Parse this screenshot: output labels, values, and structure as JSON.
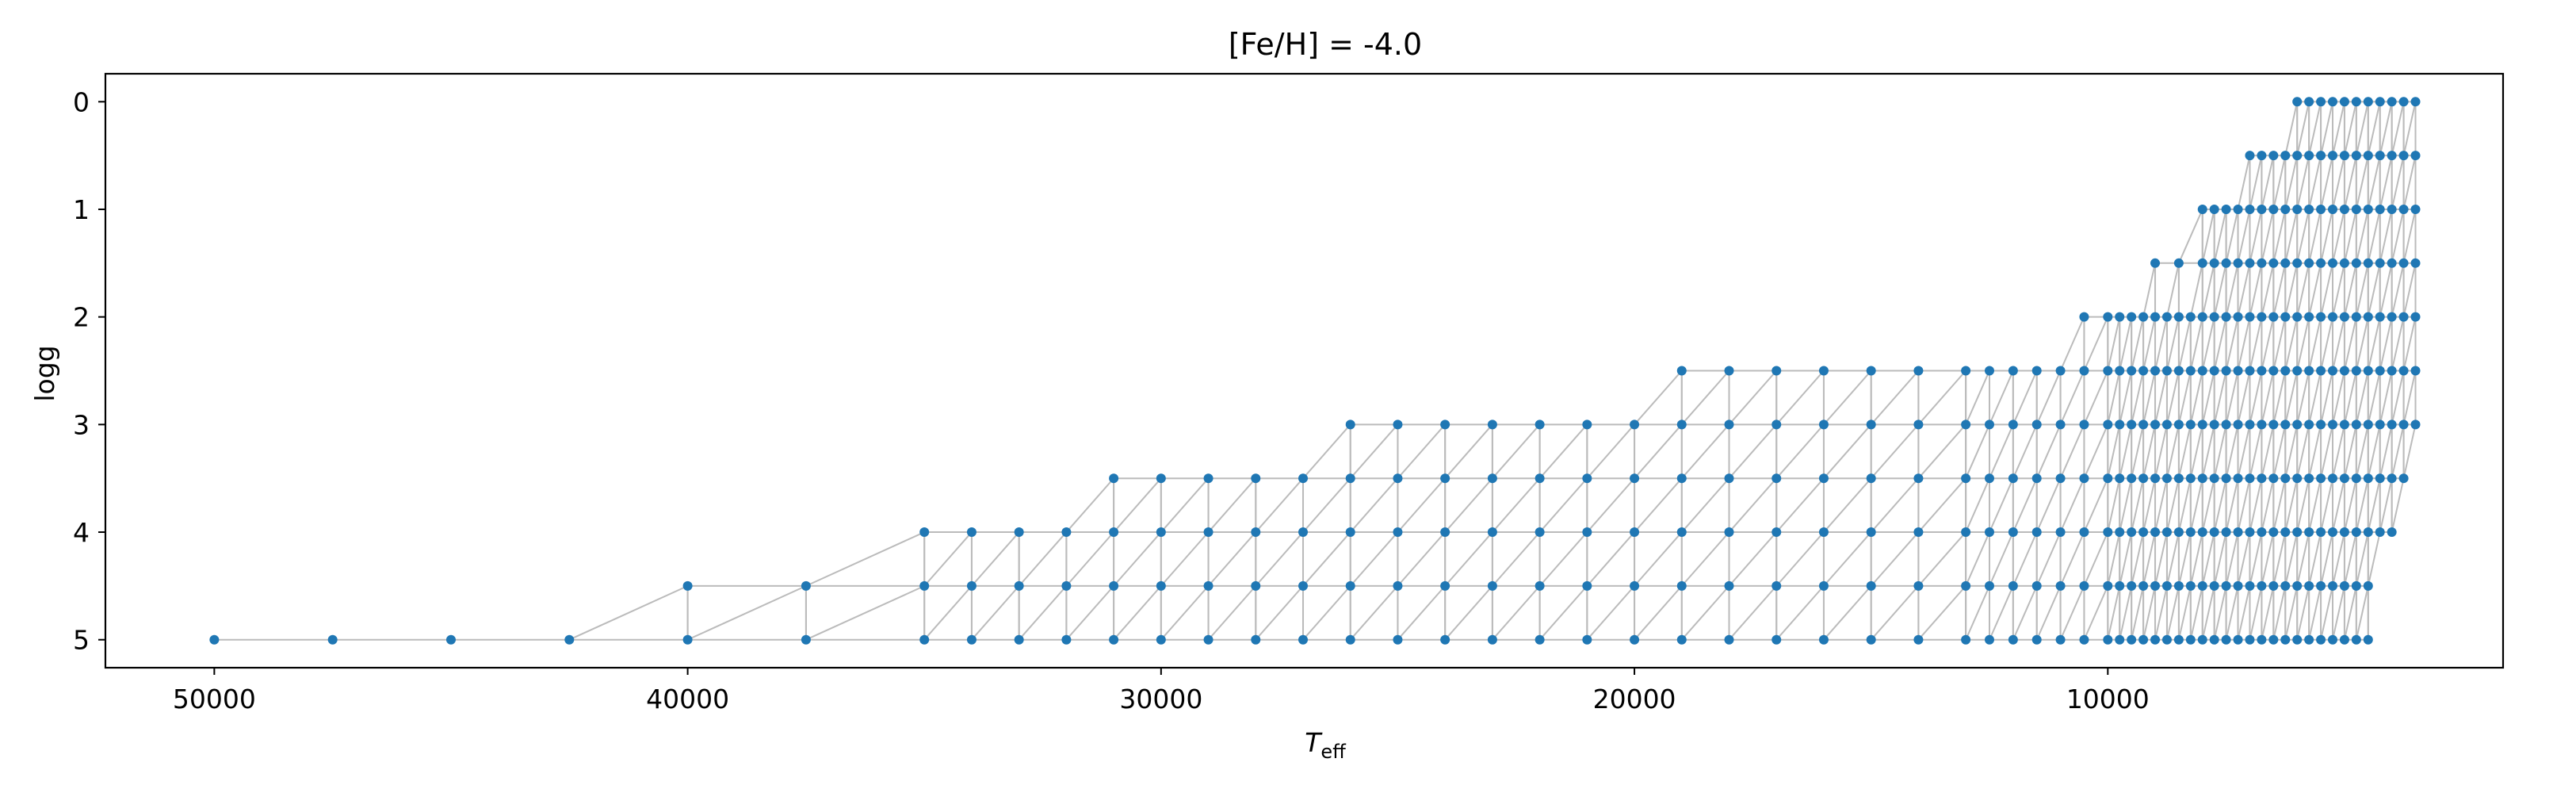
{
  "chart_data": {
    "type": "scatter",
    "title": "[Fe/H] = -4.0",
    "xlabel_main": "T",
    "xlabel_sub": "eff",
    "ylabel": "logg",
    "x_inverted": true,
    "y_inverted": true,
    "xlim": [
      52300,
      1650
    ],
    "ylim": [
      5.26,
      -0.26
    ],
    "xticks": [
      50000,
      40000,
      30000,
      20000,
      10000
    ],
    "xtick_labels": [
      "50000",
      "40000",
      "30000",
      "20000",
      "10000"
    ],
    "yticks": [
      0,
      1,
      2,
      3,
      4,
      5
    ],
    "ytick_labels": [
      "0",
      "1",
      "2",
      "3",
      "4",
      "5"
    ],
    "grid": false,
    "point_color": "#1f77b4",
    "edge_color": "#bbbbbb",
    "rows": [
      {
        "logg": 0.0,
        "teff": [
          6000,
          5750,
          5500,
          5250,
          5000,
          4750,
          4500,
          4250,
          4000,
          3750,
          3500
        ]
      },
      {
        "logg": 0.5,
        "teff": [
          7000,
          6750,
          6500,
          6250,
          6000,
          5750,
          5500,
          5250,
          5000,
          4750,
          4500,
          4250,
          4000,
          3750,
          3500
        ]
      },
      {
        "logg": 1.0,
        "teff": [
          8000,
          7750,
          7500,
          7250,
          7000,
          6750,
          6500,
          6250,
          6000,
          5750,
          5500,
          5250,
          5000,
          4750,
          4500,
          4250,
          4000,
          3750,
          3500
        ]
      },
      {
        "logg": 1.5,
        "teff": [
          9000,
          8500,
          8000,
          7750,
          7500,
          7250,
          7000,
          6750,
          6500,
          6250,
          6000,
          5750,
          5500,
          5250,
          5000,
          4750,
          4500,
          4250,
          4000,
          3750,
          3500
        ]
      },
      {
        "logg": 2.0,
        "teff": [
          10500,
          10000,
          9750,
          9500,
          9250,
          9000,
          8750,
          8500,
          8250,
          8000,
          7750,
          7500,
          7250,
          7000,
          6750,
          6500,
          6250,
          6000,
          5750,
          5500,
          5250,
          5000,
          4750,
          4500,
          4250,
          4000,
          3750,
          3500
        ]
      },
      {
        "logg": 2.5,
        "teff": [
          19000,
          18000,
          17000,
          16000,
          15000,
          14000,
          13000,
          12500,
          12000,
          11500,
          11000,
          10500,
          10000,
          9750,
          9500,
          9250,
          9000,
          8750,
          8500,
          8250,
          8000,
          7750,
          7500,
          7250,
          7000,
          6750,
          6500,
          6250,
          6000,
          5750,
          5500,
          5250,
          5000,
          4750,
          4500,
          4250,
          4000,
          3750,
          3500
        ]
      },
      {
        "logg": 3.0,
        "teff": [
          26000,
          25000,
          24000,
          23000,
          22000,
          21000,
          20000,
          19000,
          18000,
          17000,
          16000,
          15000,
          14000,
          13000,
          12500,
          12000,
          11500,
          11000,
          10500,
          10000,
          9750,
          9500,
          9250,
          9000,
          8750,
          8500,
          8250,
          8000,
          7750,
          7500,
          7250,
          7000,
          6750,
          6500,
          6250,
          6000,
          5750,
          5500,
          5250,
          5000,
          4750,
          4500,
          4250,
          4000,
          3750,
          3500
        ]
      },
      {
        "logg": 3.5,
        "teff": [
          31000,
          30000,
          29000,
          28000,
          27000,
          26000,
          25000,
          24000,
          23000,
          22000,
          21000,
          20000,
          19000,
          18000,
          17000,
          16000,
          15000,
          14000,
          13000,
          12500,
          12000,
          11500,
          11000,
          10500,
          10000,
          9750,
          9500,
          9250,
          9000,
          8750,
          8500,
          8250,
          8000,
          7750,
          7500,
          7250,
          7000,
          6750,
          6500,
          6250,
          6000,
          5750,
          5500,
          5250,
          5000,
          4750,
          4500,
          4250,
          4000,
          3750
        ]
      },
      {
        "logg": 4.0,
        "teff": [
          35000,
          34000,
          33000,
          32000,
          31000,
          30000,
          29000,
          28000,
          27000,
          26000,
          25000,
          24000,
          23000,
          22000,
          21000,
          20000,
          19000,
          18000,
          17000,
          16000,
          15000,
          14000,
          13000,
          12500,
          12000,
          11500,
          11000,
          10500,
          10000,
          9750,
          9500,
          9250,
          9000,
          8750,
          8500,
          8250,
          8000,
          7750,
          7500,
          7250,
          7000,
          6750,
          6500,
          6250,
          6000,
          5750,
          5500,
          5250,
          5000,
          4750,
          4500,
          4250,
          4000
        ]
      },
      {
        "logg": 4.5,
        "teff": [
          40000,
          37500,
          35000,
          34000,
          33000,
          32000,
          31000,
          30000,
          29000,
          28000,
          27000,
          26000,
          25000,
          24000,
          23000,
          22000,
          21000,
          20000,
          19000,
          18000,
          17000,
          16000,
          15000,
          14000,
          13000,
          12500,
          12000,
          11500,
          11000,
          10500,
          10000,
          9750,
          9500,
          9250,
          9000,
          8750,
          8500,
          8250,
          8000,
          7750,
          7500,
          7250,
          7000,
          6750,
          6500,
          6250,
          6000,
          5750,
          5500,
          5250,
          5000,
          4750,
          4500
        ]
      },
      {
        "logg": 5.0,
        "teff": [
          50000,
          47500,
          45000,
          42500,
          40000,
          37500,
          35000,
          34000,
          33000,
          32000,
          31000,
          30000,
          29000,
          28000,
          27000,
          26000,
          25000,
          24000,
          23000,
          22000,
          21000,
          20000,
          19000,
          18000,
          17000,
          16000,
          15000,
          14000,
          13000,
          12500,
          12000,
          11500,
          11000,
          10500,
          10000,
          9750,
          9500,
          9250,
          9000,
          8750,
          8500,
          8250,
          8000,
          7750,
          7500,
          7250,
          7000,
          6750,
          6500,
          6250,
          6000,
          5750,
          5500,
          5250,
          5000,
          4750,
          4500
        ]
      }
    ]
  }
}
